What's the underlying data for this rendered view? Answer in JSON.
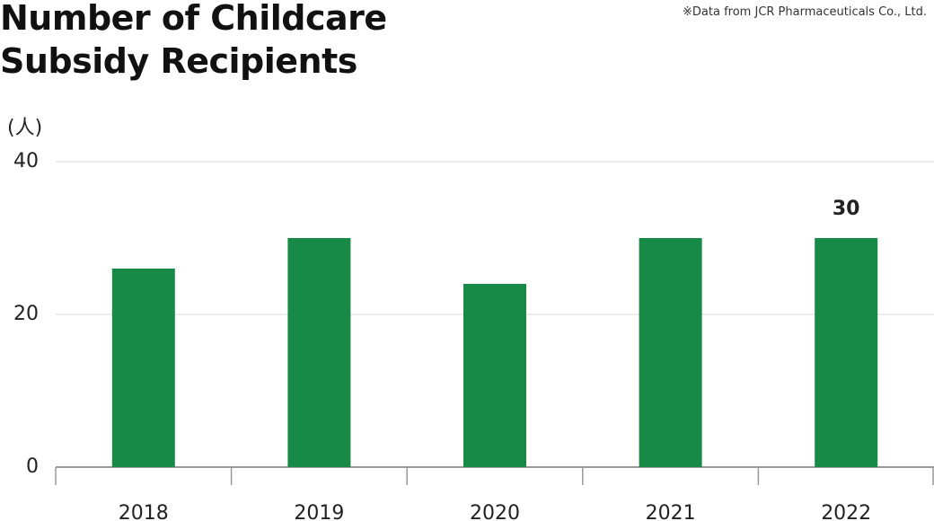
{
  "chart_data": {
    "type": "bar",
    "title": "Number of Childcare Subsidy Recipients",
    "source": "※Data from JCR Pharmaceuticals Co., Ltd.",
    "y_label": "(人)",
    "categories": [
      "2018",
      "2019",
      "2020",
      "2021",
      "2022"
    ],
    "values": [
      26,
      30,
      24,
      30,
      30
    ],
    "value_labels": [
      null,
      null,
      null,
      null,
      "30"
    ],
    "color": "#178a47",
    "ylim": [
      0,
      40
    ],
    "yticks": [
      0,
      20,
      40
    ],
    "grid": true
  }
}
